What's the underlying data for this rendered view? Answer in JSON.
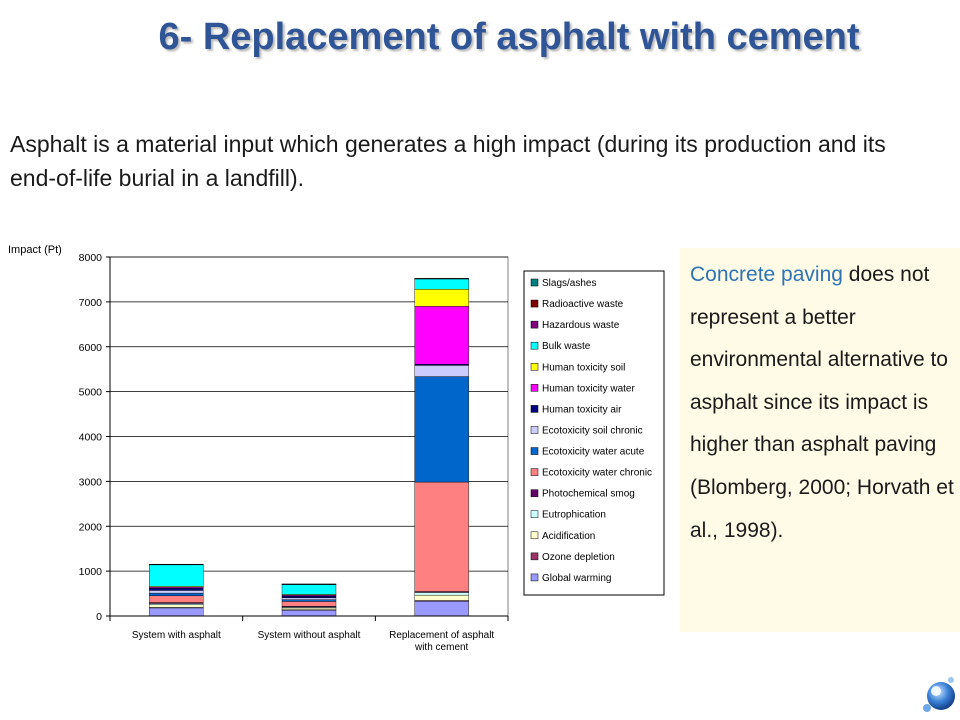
{
  "title": "6- Replacement of asphalt with cement",
  "intro": "Asphalt is a material input which generates a high impact (during its production and its end-of-life burial in a landfill).",
  "note": {
    "part1": "Concrete paving",
    "part2": " does not represent a better environmental alternative to asphalt since its impact is higher than asphalt paving (Blomberg, 2000; Horvath et al., 1998).",
    "accent_color": "#2e74b5"
  },
  "logo_icon": "globe-logo-icon",
  "chart_data": {
    "type": "bar",
    "stacked": true,
    "ylabel": "Impact (Pt)",
    "ylim": [
      0,
      8000
    ],
    "yticks": [
      "0",
      "1000",
      "2000",
      "3000",
      "4000",
      "5000",
      "6000",
      "7000",
      "8000"
    ],
    "grid": true,
    "legend_position": "right",
    "categories": [
      [
        "System with asphalt"
      ],
      [
        "System without asphalt"
      ],
      [
        "Replacement of asphalt",
        "with cement"
      ]
    ],
    "series": [
      {
        "name": "Global warming",
        "color": "#9999ff",
        "values": [
          180,
          130,
          330
        ]
      },
      {
        "name": "Ozone depletion",
        "color": "#993366",
        "values": [
          10,
          10,
          15
        ]
      },
      {
        "name": "Acidification",
        "color": "#ffffcc",
        "values": [
          60,
          40,
          120
        ]
      },
      {
        "name": "Eutrophication",
        "color": "#ccffff",
        "values": [
          30,
          20,
          60
        ]
      },
      {
        "name": "Photochemical smog",
        "color": "#660066",
        "values": [
          20,
          15,
          20
        ]
      },
      {
        "name": "Ecotoxicity water chronic",
        "color": "#ff8080",
        "values": [
          150,
          110,
          2440
        ]
      },
      {
        "name": "Ecotoxicity water acute",
        "color": "#0066cc",
        "values": [
          60,
          40,
          2350
        ]
      },
      {
        "name": "Ecotoxicity soil chronic",
        "color": "#ccccff",
        "values": [
          60,
          40,
          250
        ]
      },
      {
        "name": "Human toxicity air",
        "color": "#000080",
        "values": [
          50,
          40,
          25
        ]
      },
      {
        "name": "Human toxicity water",
        "color": "#ff00ff",
        "values": [
          20,
          20,
          1290
        ]
      },
      {
        "name": "Human toxicity soil",
        "color": "#ffff00",
        "values": [
          20,
          15,
          380
        ]
      },
      {
        "name": "Bulk waste",
        "color": "#00ffff",
        "values": [
          480,
          220,
          230
        ]
      },
      {
        "name": "Hazardous waste",
        "color": "#800080",
        "values": [
          5,
          5,
          5
        ]
      },
      {
        "name": "Radioactive waste",
        "color": "#800000",
        "values": [
          5,
          5,
          5
        ]
      },
      {
        "name": "Slags/ashes",
        "color": "#008080",
        "values": [
          5,
          5,
          5
        ]
      }
    ]
  }
}
